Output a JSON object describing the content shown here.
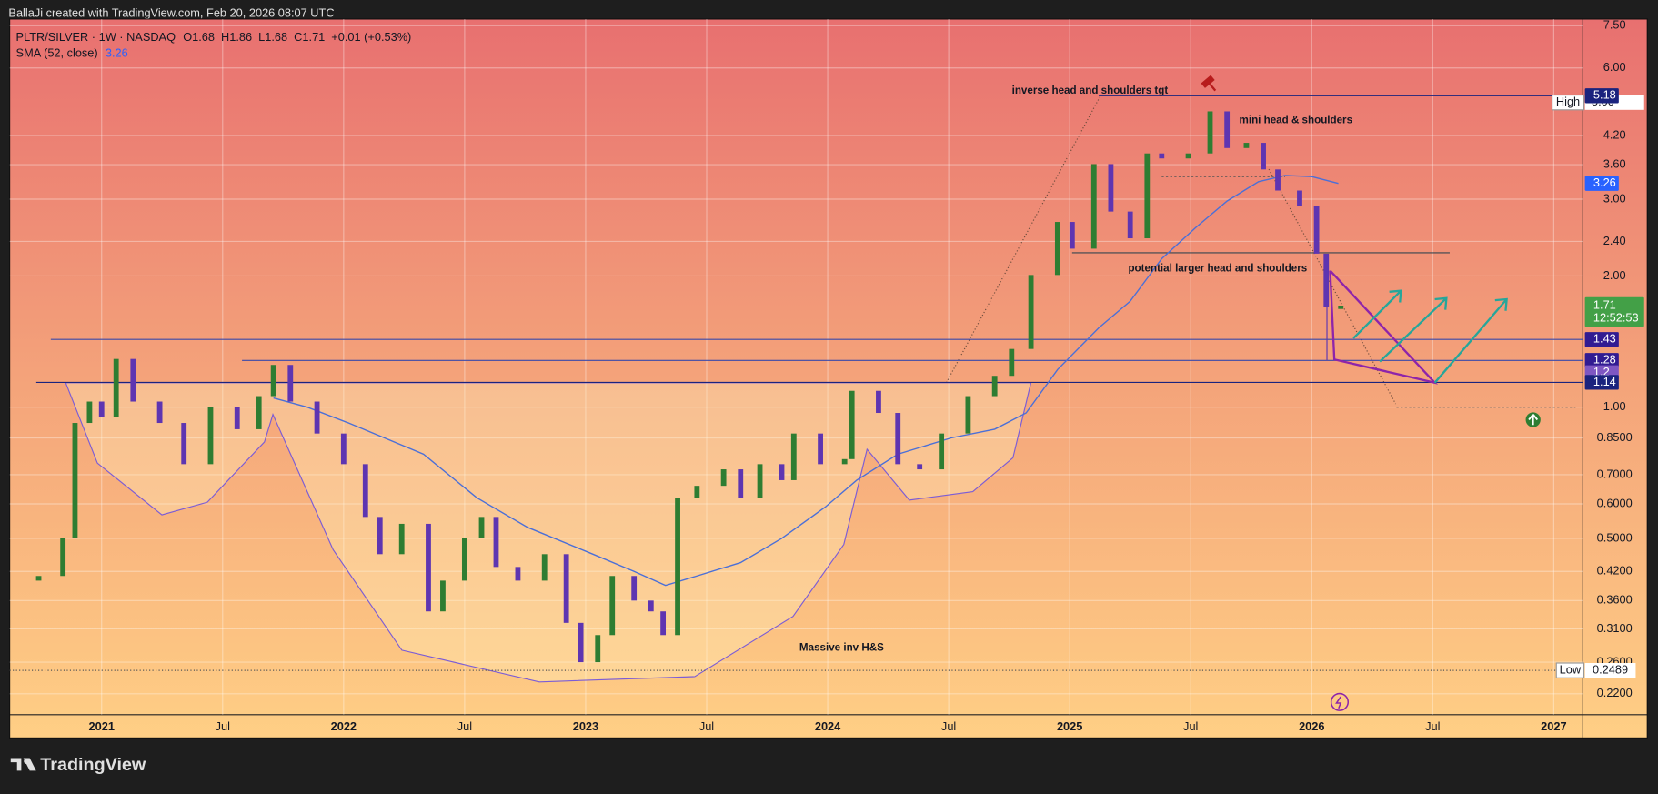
{
  "header": {
    "text": "BallaJi created with TradingView.com, Feb 20, 2026 08:07 UTC"
  },
  "legend": {
    "symbol": "PLTR/SILVER · 1W · NASDAQ",
    "ohlc": [
      {
        "key": "O",
        "value": 1.68
      },
      {
        "key": "H",
        "value": 1.86
      },
      {
        "key": "L",
        "value": 1.68
      },
      {
        "key": "C",
        "value": 1.71
      }
    ],
    "change": "+0.01 (+0.53%)",
    "sma_value": 3.26
  },
  "annotations": [
    "inverse head and shoulders tgt",
    "mini head & shoulders",
    "potential larger head and shoulders",
    "Massive inv H&S"
  ],
  "footer": {
    "brand": "TradingView"
  },
  "chart_data": {
    "type": "candlestick",
    "x": [
      2020.74,
      2020.84,
      2020.89,
      2020.95,
      2021.0,
      2021.06,
      2021.13,
      2021.24,
      2021.34,
      2021.45,
      2021.56,
      2021.65,
      2021.71,
      2021.78,
      2021.89,
      2022.0,
      2022.09,
      2022.15,
      2022.24,
      2022.35,
      2022.41,
      2022.5,
      2022.57,
      2022.63,
      2022.72,
      2022.83,
      2022.92,
      2022.98,
      2023.05,
      2023.11,
      2023.2,
      2023.27,
      2023.32,
      2023.38,
      2023.46,
      2023.57,
      2023.64,
      2023.72,
      2023.81,
      2023.86,
      2023.97,
      2024.07,
      2024.1,
      2024.21,
      2024.29,
      2024.38,
      2024.47,
      2024.58,
      2024.69,
      2024.76,
      2024.84,
      2024.95,
      2025.01,
      2025.1,
      2025.17,
      2025.25,
      2025.32,
      2025.38,
      2025.49,
      2025.58,
      2025.65,
      2025.73,
      2025.8,
      2025.86,
      2025.95,
      2026.02,
      2026.06,
      2026.12
    ],
    "open": [
      0.4,
      0.41,
      0.5,
      0.92,
      1.03,
      0.95,
      1.29,
      1.03,
      0.92,
      0.74,
      1.0,
      0.89,
      1.06,
      1.25,
      1.03,
      0.87,
      0.74,
      0.56,
      0.46,
      0.54,
      0.34,
      0.4,
      0.5,
      0.56,
      0.43,
      0.4,
      0.46,
      0.32,
      0.26,
      0.3,
      0.41,
      0.36,
      0.34,
      0.3,
      0.62,
      0.66,
      0.72,
      0.62,
      0.74,
      0.68,
      0.87,
      0.74,
      0.76,
      1.09,
      0.97,
      0.74,
      0.72,
      0.87,
      1.06,
      1.18,
      1.36,
      2.01,
      2.66,
      2.31,
      3.61,
      2.81,
      2.44,
      3.82,
      3.72,
      3.82,
      4.77,
      3.93,
      4.04,
      3.51,
      3.14,
      2.89,
      2.25,
      1.68
    ],
    "close": [
      0.41,
      0.5,
      0.92,
      1.03,
      0.95,
      1.29,
      1.03,
      0.92,
      0.74,
      1.0,
      0.89,
      1.06,
      1.25,
      1.03,
      0.87,
      0.74,
      0.56,
      0.46,
      0.54,
      0.34,
      0.4,
      0.5,
      0.56,
      0.43,
      0.4,
      0.46,
      0.32,
      0.26,
      0.3,
      0.41,
      0.36,
      0.34,
      0.3,
      0.62,
      0.66,
      0.72,
      0.62,
      0.74,
      0.68,
      0.87,
      0.74,
      0.76,
      1.09,
      0.97,
      0.74,
      0.72,
      0.87,
      1.06,
      1.18,
      1.36,
      2.01,
      2.66,
      2.31,
      3.61,
      2.81,
      2.44,
      3.82,
      3.72,
      3.82,
      4.77,
      3.93,
      4.04,
      3.51,
      3.14,
      2.89,
      2.25,
      1.7,
      1.71
    ],
    "up_color": "#2e7d32",
    "down_color": "#5e35b1",
    "series": [
      {
        "name": "SMA (52, close)",
        "color": "#4a6fd8",
        "x": [
          2021.71,
          2021.85,
          2022.02,
          2022.33,
          2022.55,
          2022.76,
          2023.03,
          2023.2,
          2023.33,
          2023.46,
          2023.64,
          2023.81,
          2023.99,
          2024.12,
          2024.29,
          2024.51,
          2024.69,
          2024.82,
          2024.95,
          2025.12,
          2025.25,
          2025.38,
          2025.52,
          2025.65,
          2025.78,
          2025.89,
          2026.0,
          2026.11
        ],
        "values": [
          1.05,
          1.0,
          0.92,
          0.78,
          0.62,
          0.53,
          0.46,
          0.42,
          0.39,
          0.41,
          0.44,
          0.5,
          0.59,
          0.68,
          0.78,
          0.85,
          0.89,
          0.97,
          1.22,
          1.52,
          1.75,
          2.19,
          2.58,
          2.97,
          3.29,
          3.4,
          3.38,
          3.26
        ]
      }
    ],
    "levels": [
      {
        "value": 5.18,
        "x_start": 2025.12,
        "color": "#1a237e"
      },
      {
        "value": 1.43,
        "x_start": 2020.79,
        "color": "#3949ab"
      },
      {
        "value": 1.28,
        "x_start": 2021.58,
        "color": "#3949ab"
      },
      {
        "value": 1.14,
        "x_start": 2020.73,
        "color": "#1a237e"
      },
      {
        "value": 2.26,
        "x_start": 2025.01,
        "x_end": 2026.57,
        "color": "#37474f"
      },
      {
        "value": 3.38,
        "x_start": 2025.38,
        "x_end": 2025.89,
        "color": "#555555"
      },
      {
        "value": 1.0,
        "x_start": 2026.35,
        "x_end": 2027.09,
        "color": "#37474f"
      }
    ],
    "price_labels": [
      {
        "value": 5.18,
        "color": "#1a237e"
      },
      {
        "value": 3.26,
        "color": "#2962ff"
      },
      {
        "value": 1.71,
        "color": "#43a047",
        "countdown": "12:52:53"
      },
      {
        "value": 1.43,
        "color": "#311b92"
      },
      {
        "value": 1.28,
        "color": "#311b92"
      },
      {
        "value": 1.2,
        "color": "#7e57c2"
      },
      {
        "value": 1.14,
        "color": "#1a237e"
      }
    ],
    "high": {
      "name": "High",
      "value": 5,
      "label": "5.00"
    },
    "low": {
      "name": "Low",
      "value": 0.2489
    },
    "log_scale": true,
    "grid": true,
    "xlim": [
      2020.62,
      2027.12
    ],
    "xticks": [
      2021,
      {
        "value": 2021.5,
        "label": "Jul"
      },
      2022,
      {
        "value": 2022.5,
        "label": "Jul"
      },
      2023,
      {
        "value": 2023.5,
        "label": "Jul"
      },
      2024,
      {
        "value": 2024.5,
        "label": "Jul"
      },
      2025,
      {
        "value": 2025.5,
        "label": "Jul"
      },
      2026,
      {
        "value": 2026.5,
        "label": "Jul"
      },
      2027
    ],
    "ylim": [
      0.197,
      7.77
    ],
    "yticks": [
      {
        "value": 7.5,
        "label": "7.50"
      },
      {
        "value": 6,
        "label": "6.00"
      },
      {
        "value": 4.2,
        "label": "4.20"
      },
      {
        "value": 3.6,
        "label": "3.60"
      },
      {
        "value": 3,
        "label": "3.00"
      },
      {
        "value": 2.4,
        "label": "2.40"
      },
      {
        "value": 2,
        "label": "2.00"
      },
      {
        "value": 1,
        "label": "1.00"
      },
      {
        "value": 0.85,
        "label": "0.8500"
      },
      {
        "value": 0.7,
        "label": "0.7000"
      },
      {
        "value": 0.6,
        "label": "0.6000"
      },
      {
        "value": 0.5,
        "label": "0.5000"
      },
      {
        "value": 0.42,
        "label": "0.4200"
      },
      {
        "value": 0.36,
        "label": "0.3600"
      },
      {
        "value": 0.31,
        "label": "0.3100"
      },
      {
        "value": 0.26,
        "label": "0.2600"
      },
      {
        "value": 0.22,
        "label": "0.2200"
      }
    ]
  }
}
